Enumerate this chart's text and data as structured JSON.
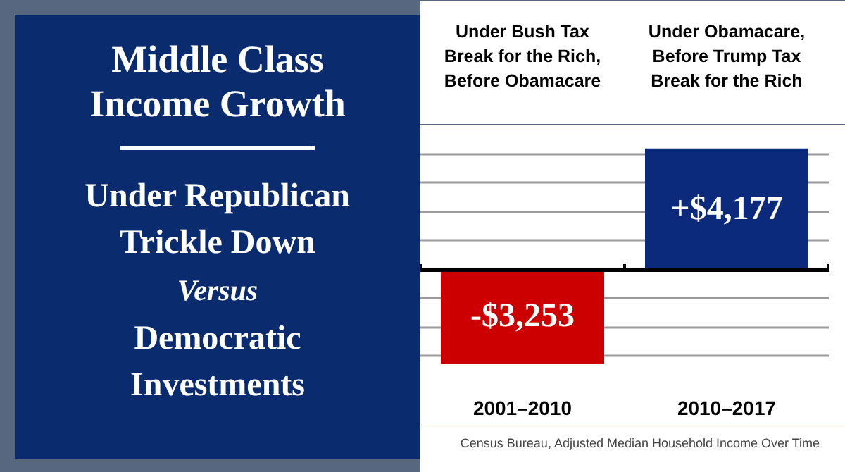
{
  "chart_data": {
    "type": "bar",
    "title": "Middle Class\nIncome Growth",
    "subtitle": "Under Republican\nTrickle Down\nVersus\nDemocratic\nInvestments",
    "categories": [
      "2001–2010",
      "2010–2017"
    ],
    "values": [
      -3253,
      4177
    ],
    "value_labels": [
      "-$3,253",
      "+$4,177"
    ],
    "colors": [
      "#cc0000",
      "#0c2a7c"
    ],
    "annotations": [
      "Under Bush Tax\nBreak for the Rich,\nBefore Obamacare",
      "Under Obamacare,\nBefore Trump Tax\nBreak for the Rich",
      "Census Bureau, Adjusted Median Household Income Over Time"
    ],
    "ylim": [
      -4000,
      5000
    ],
    "yticks": [
      {
        "value": -4000,
        "label": null
      },
      {
        "value": -3000,
        "label": null
      },
      {
        "value": -2000,
        "label": null
      },
      {
        "value": -1000,
        "label": null
      },
      {
        "value": 0,
        "label": null
      },
      {
        "value": 1000,
        "label": null
      },
      {
        "value": 2000,
        "label": null
      },
      {
        "value": 3000,
        "label": null
      },
      {
        "value": 4000,
        "label": null
      },
      {
        "value": 5000,
        "label": null
      }
    ],
    "grid": "y",
    "tick_labels": "x"
  }
}
